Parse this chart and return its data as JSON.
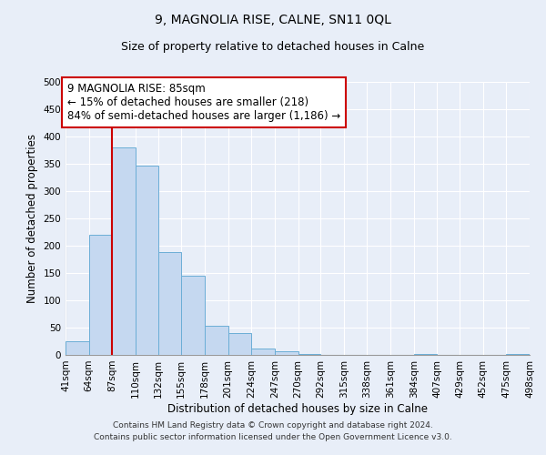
{
  "title": "9, MAGNOLIA RISE, CALNE, SN11 0QL",
  "subtitle": "Size of property relative to detached houses in Calne",
  "xlabel": "Distribution of detached houses by size in Calne",
  "ylabel": "Number of detached properties",
  "bin_edges": [
    41,
    64,
    87,
    110,
    132,
    155,
    178,
    201,
    224,
    247,
    270,
    292,
    315,
    338,
    361,
    384,
    407,
    429,
    452,
    475,
    498
  ],
  "bar_heights": [
    25,
    220,
    380,
    347,
    188,
    145,
    54,
    40,
    11,
    7,
    2,
    0,
    0,
    0,
    0,
    1,
    0,
    0,
    0,
    2
  ],
  "bar_color": "#c5d8f0",
  "bar_edge_color": "#6baed6",
  "vline_x": 87,
  "vline_color": "#cc0000",
  "annotation_text": "9 MAGNOLIA RISE: 85sqm\n← 15% of detached houses are smaller (218)\n84% of semi-detached houses are larger (1,186) →",
  "annotation_box_color": "#ffffff",
  "annotation_box_edge_color": "#cc0000",
  "ylim": [
    0,
    500
  ],
  "yticks": [
    0,
    50,
    100,
    150,
    200,
    250,
    300,
    350,
    400,
    450,
    500
  ],
  "tick_labels": [
    "41sqm",
    "64sqm",
    "87sqm",
    "110sqm",
    "132sqm",
    "155sqm",
    "178sqm",
    "201sqm",
    "224sqm",
    "247sqm",
    "270sqm",
    "292sqm",
    "315sqm",
    "338sqm",
    "361sqm",
    "384sqm",
    "407sqm",
    "429sqm",
    "452sqm",
    "475sqm",
    "498sqm"
  ],
  "footer_line1": "Contains HM Land Registry data © Crown copyright and database right 2024.",
  "footer_line2": "Contains public sector information licensed under the Open Government Licence v3.0.",
  "background_color": "#e8eef8",
  "grid_color": "#ffffff",
  "title_fontsize": 10,
  "subtitle_fontsize": 9,
  "axis_label_fontsize": 8.5,
  "tick_fontsize": 7.5,
  "annotation_fontsize": 8.5,
  "footer_fontsize": 6.5
}
